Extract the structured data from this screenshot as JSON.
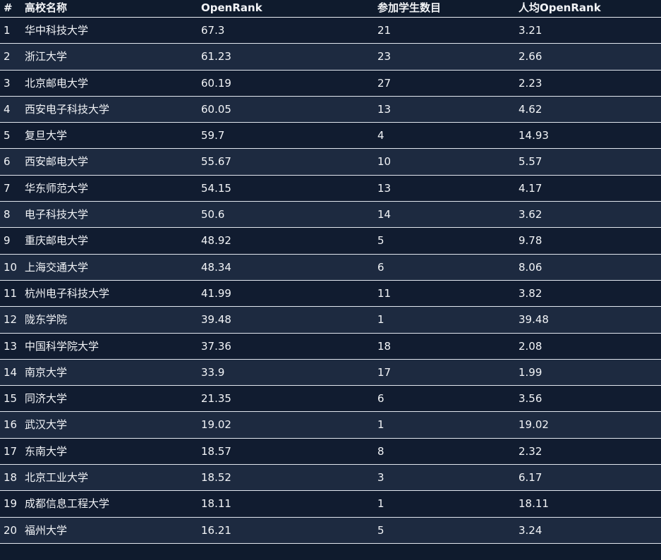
{
  "table": {
    "headers": {
      "rank": "#",
      "name": "高校名称",
      "openrank": "OpenRank",
      "students": "参加学生数目",
      "avg": "人均OpenRank"
    },
    "rows": [
      {
        "rank": "1",
        "name": "华中科技大学",
        "openrank": "67.3",
        "students": "21",
        "avg": "3.21"
      },
      {
        "rank": "2",
        "name": "浙江大学",
        "openrank": "61.23",
        "students": "23",
        "avg": "2.66"
      },
      {
        "rank": "3",
        "name": "北京邮电大学",
        "openrank": "60.19",
        "students": "27",
        "avg": "2.23"
      },
      {
        "rank": "4",
        "name": "西安电子科技大学",
        "openrank": "60.05",
        "students": "13",
        "avg": "4.62"
      },
      {
        "rank": "5",
        "name": "复旦大学",
        "openrank": "59.7",
        "students": "4",
        "avg": "14.93"
      },
      {
        "rank": "6",
        "name": "西安邮电大学",
        "openrank": "55.67",
        "students": "10",
        "avg": "5.57"
      },
      {
        "rank": "7",
        "name": "华东师范大学",
        "openrank": "54.15",
        "students": "13",
        "avg": "4.17"
      },
      {
        "rank": "8",
        "name": "电子科技大学",
        "openrank": "50.6",
        "students": "14",
        "avg": "3.62"
      },
      {
        "rank": "9",
        "name": "重庆邮电大学",
        "openrank": "48.92",
        "students": "5",
        "avg": "9.78"
      },
      {
        "rank": "10",
        "name": "上海交通大学",
        "openrank": "48.34",
        "students": "6",
        "avg": "8.06"
      },
      {
        "rank": "11",
        "name": "杭州电子科技大学",
        "openrank": "41.99",
        "students": "11",
        "avg": "3.82"
      },
      {
        "rank": "12",
        "name": "陇东学院",
        "openrank": "39.48",
        "students": "1",
        "avg": "39.48"
      },
      {
        "rank": "13",
        "name": "中国科学院大学",
        "openrank": "37.36",
        "students": "18",
        "avg": "2.08"
      },
      {
        "rank": "14",
        "name": "南京大学",
        "openrank": "33.9",
        "students": "17",
        "avg": "1.99"
      },
      {
        "rank": "15",
        "name": "同济大学",
        "openrank": "21.35",
        "students": "6",
        "avg": "3.56"
      },
      {
        "rank": "16",
        "name": "武汉大学",
        "openrank": "19.02",
        "students": "1",
        "avg": "19.02"
      },
      {
        "rank": "17",
        "name": "东南大学",
        "openrank": "18.57",
        "students": "8",
        "avg": "2.32"
      },
      {
        "rank": "18",
        "name": "北京工业大学",
        "openrank": "18.52",
        "students": "3",
        "avg": "6.17"
      },
      {
        "rank": "19",
        "name": "成都信息工程大学",
        "openrank": "18.11",
        "students": "1",
        "avg": "18.11"
      },
      {
        "rank": "20",
        "name": "福州大学",
        "openrank": "16.21",
        "students": "5",
        "avg": "3.24"
      }
    ]
  },
  "colors": {
    "background": "#0f1b2d",
    "row_odd": "#111c30",
    "row_even": "#1d2a40",
    "text": "#f2f4f7",
    "divider": "#e2e7ef"
  }
}
